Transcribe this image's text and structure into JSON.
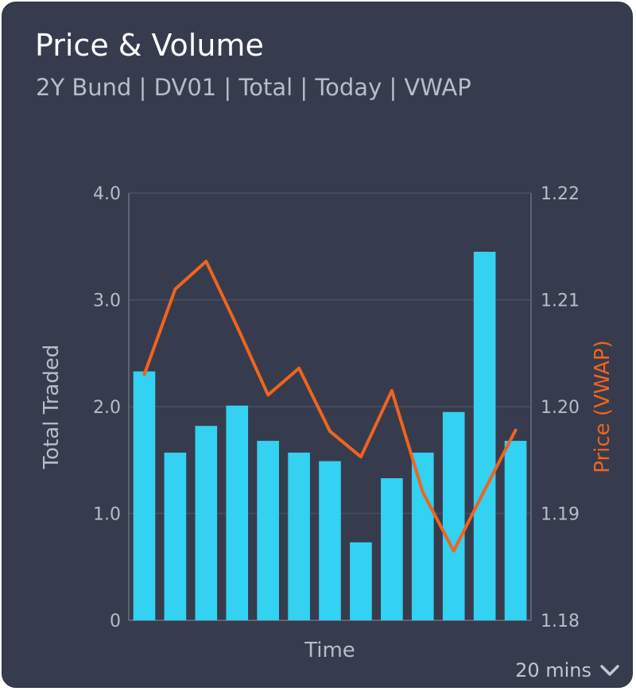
{
  "card": {
    "title": "Price & Volume",
    "subtitle": "2Y Bund | DV01 | Total | Today | VWAP",
    "interval": {
      "label": "20 mins",
      "icon": "chevron-down-icon"
    }
  },
  "colors": {
    "background": "#363c4d",
    "bars": "#33d1f2",
    "line": "#f0641e",
    "text": "#b7bcc9",
    "grid": "#4a5063"
  },
  "chart_data": {
    "type": "bar+line",
    "xlabel": "Time",
    "ylabel_left": "Total Traded",
    "ylabel_right": "Price (VWAP)",
    "ylim_left": [
      0,
      4.0
    ],
    "ylim_right": [
      1.18,
      1.22
    ],
    "left_ticks": [
      "0",
      "1.0",
      "2.0",
      "3.0",
      "4.0"
    ],
    "left_tick_values": [
      0,
      1,
      2,
      3,
      4
    ],
    "right_ticks": [
      "1.18",
      "1.19",
      "1.20",
      "1.21",
      "1.22"
    ],
    "right_tick_values": [
      1.18,
      1.19,
      1.2,
      1.21,
      1.22
    ],
    "grid": true,
    "series": [
      {
        "name": "Total Traded",
        "type": "bar",
        "axis": "left",
        "values": [
          2.33,
          1.57,
          1.82,
          2.01,
          1.68,
          1.57,
          1.49,
          0.73,
          1.33,
          1.57,
          1.95,
          3.45,
          1.68
        ]
      },
      {
        "name": "Price (VWAP)",
        "type": "line",
        "axis": "right",
        "values": [
          1.203,
          1.211,
          1.2136,
          1.2075,
          1.2011,
          1.2036,
          1.1977,
          1.1953,
          1.2015,
          1.192,
          1.1865,
          1.1922,
          1.1978
        ]
      }
    ]
  }
}
